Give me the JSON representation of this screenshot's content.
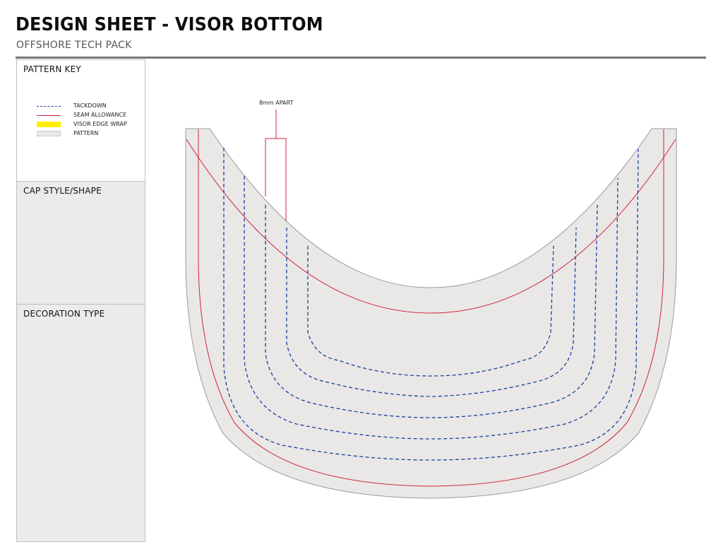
{
  "header": {
    "title": "DESIGN SHEET - VISOR BOTTOM",
    "subtitle": "OFFSHORE TECH PACK"
  },
  "sidebar": {
    "pattern_key": {
      "heading": "PATTERN KEY",
      "items": [
        {
          "label": "TACKDOWN",
          "swatch": "dashed-line",
          "color": "#1a3fa0"
        },
        {
          "label": "SEAM ALLOWANCE",
          "swatch": "solid-line",
          "color": "#d0233a"
        },
        {
          "label": "VISOR EDGE WRAP",
          "swatch": "fill",
          "color": "#ffee00"
        },
        {
          "label": "PATTERN",
          "swatch": "fill",
          "color": "#e9e8e6"
        }
      ]
    },
    "cap_style": {
      "heading": "CAP STYLE/SHAPE"
    },
    "decoration": {
      "heading": "DECORATION TYPE"
    }
  },
  "drawing": {
    "callout": "8mm APART",
    "tackdown_rows": 5,
    "colors": {
      "pattern": "#e9e8e6",
      "outline": "#9a9a9a",
      "seam": "#d0233a",
      "tackdown": "#1a3fa0"
    }
  }
}
